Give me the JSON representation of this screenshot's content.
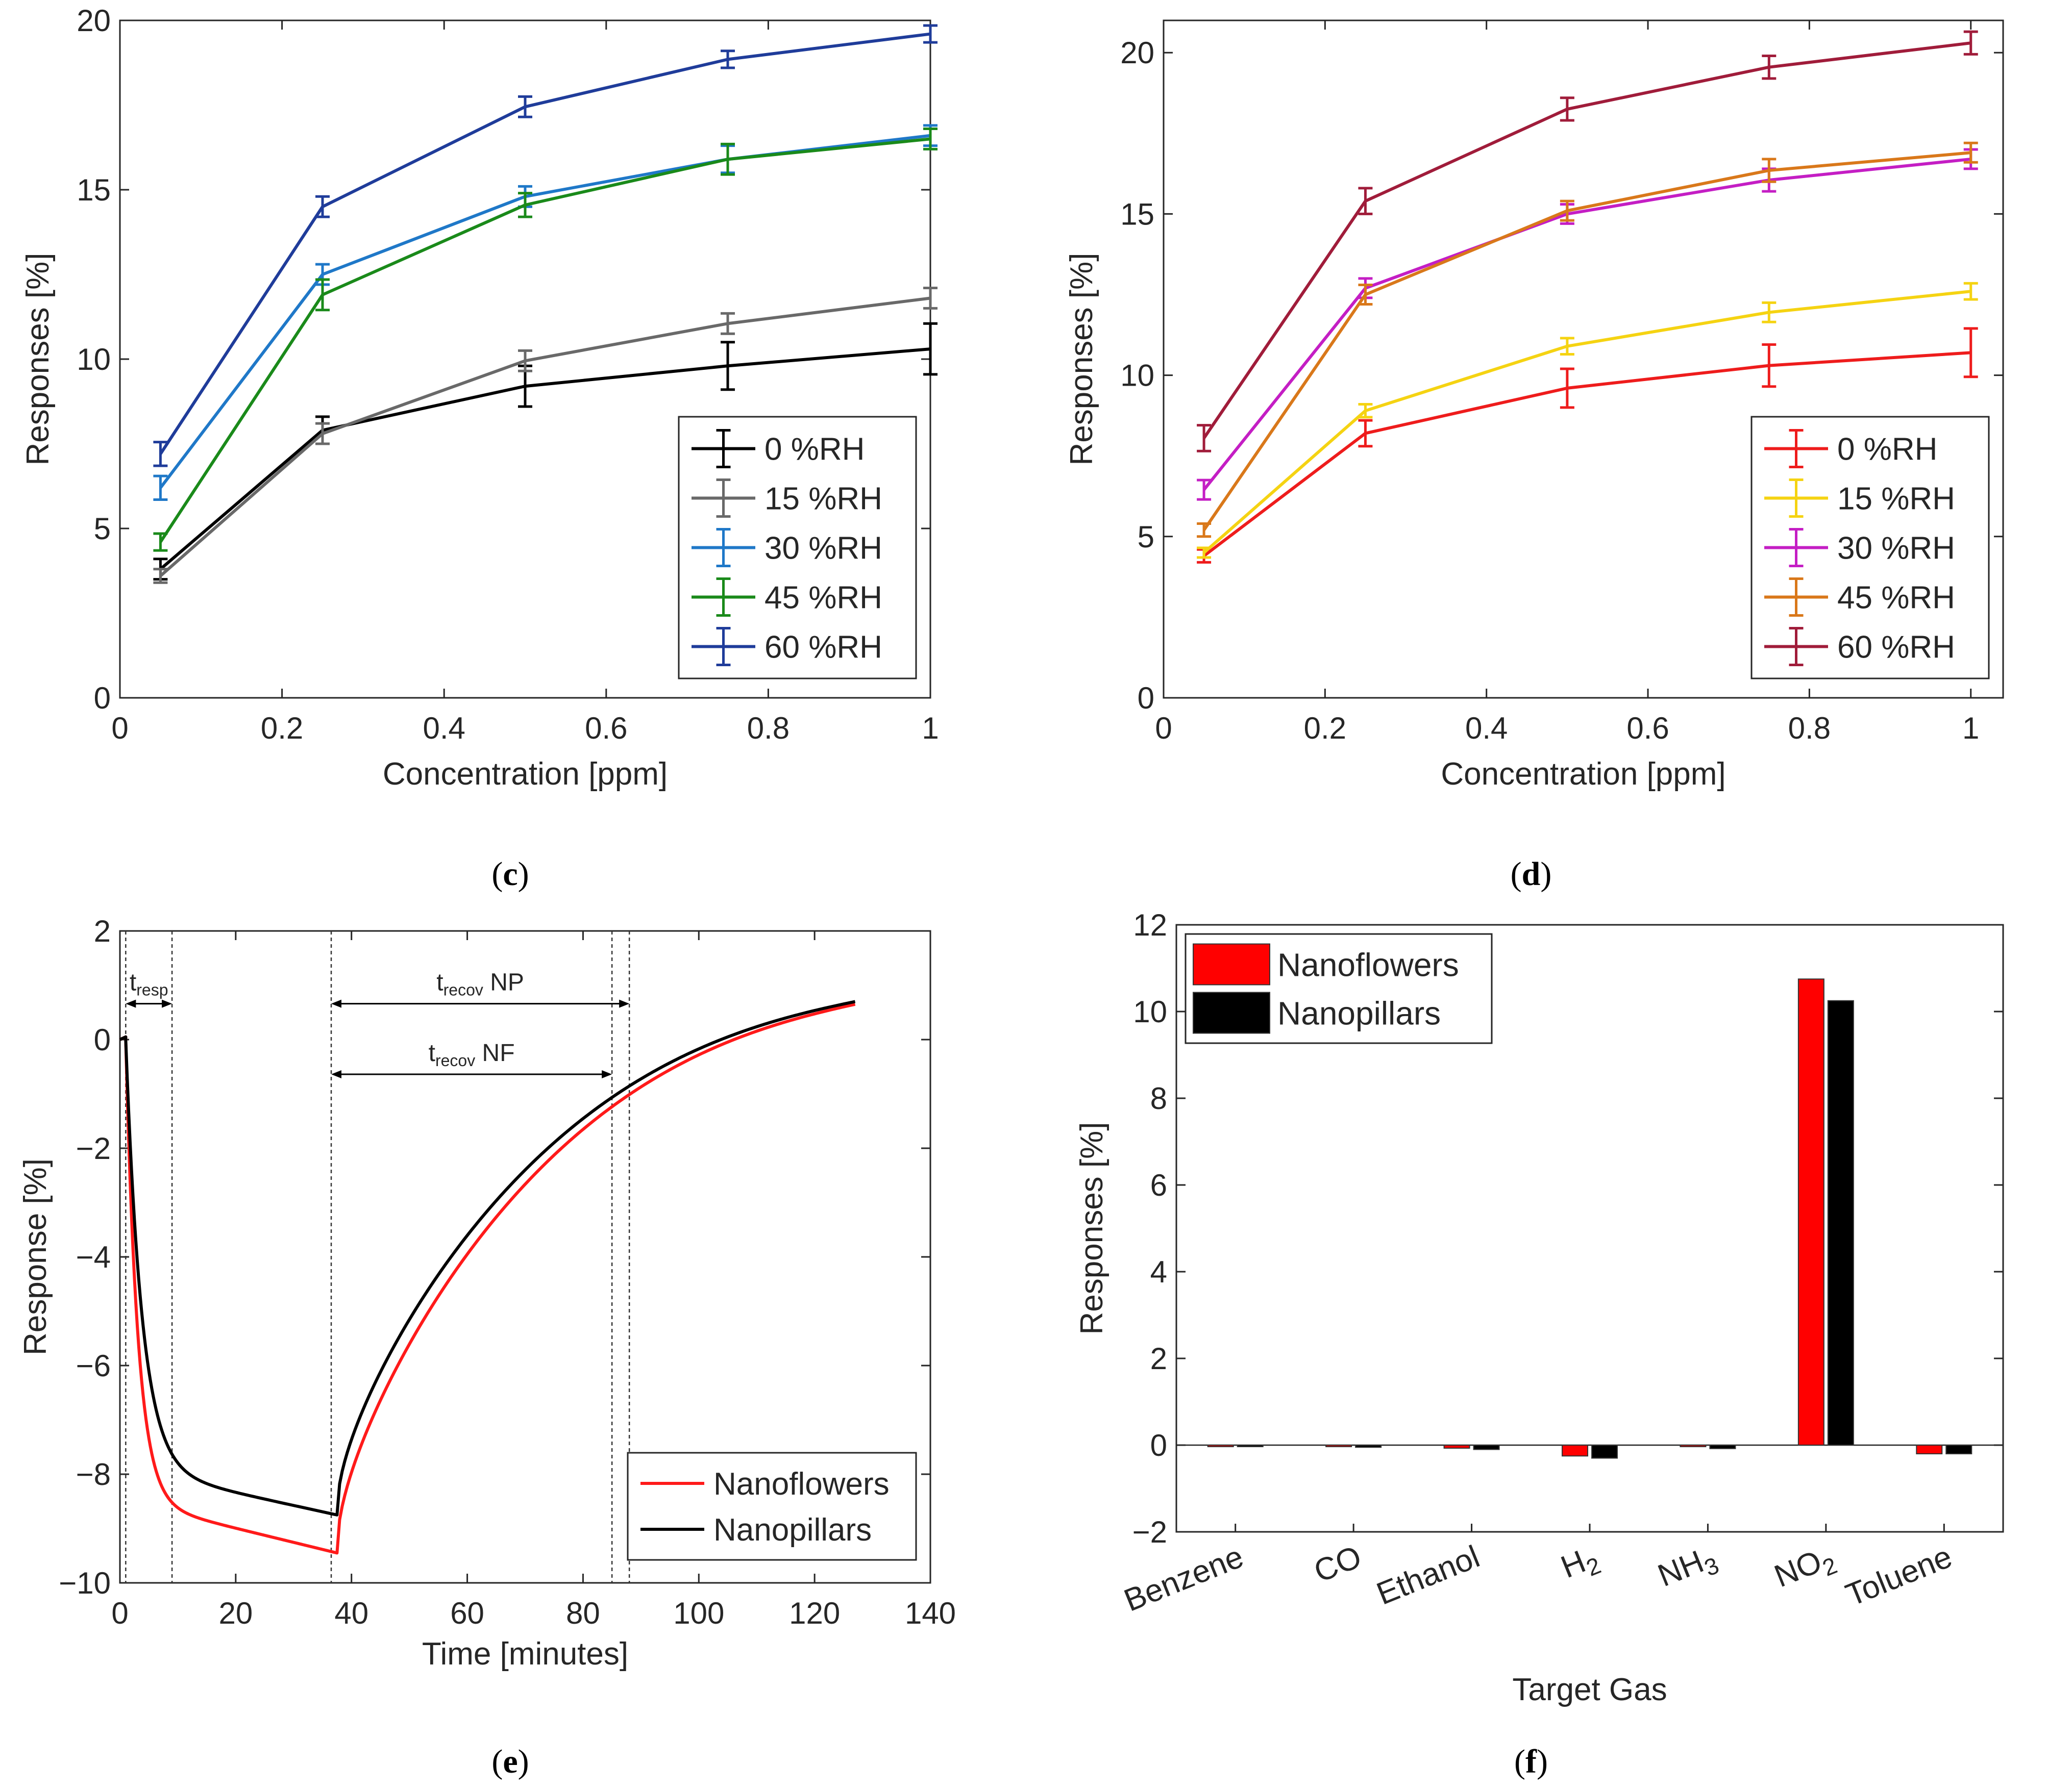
{
  "chart_data": [
    {
      "id": "c",
      "type": "line",
      "panel_label": "c",
      "xlabel": "Concentration [ppm]",
      "ylabel": "Responses [%]",
      "xlim": [
        0,
        1
      ],
      "ylim": [
        0,
        20
      ],
      "xticks": [
        0,
        0.2,
        0.4,
        0.6,
        0.8,
        1
      ],
      "xtick_labels": [
        "0",
        "0.2",
        "0.4",
        "0.6",
        "0.8",
        "1"
      ],
      "yticks": [
        0,
        5,
        10,
        15,
        20
      ],
      "ytick_labels": [
        "0",
        "5",
        "10",
        "15",
        "20"
      ],
      "legend_position": "bottom-right",
      "x": [
        0.05,
        0.25,
        0.5,
        0.75,
        1
      ],
      "series": [
        {
          "name": "0 %RH",
          "color": "#000000",
          "values": [
            3.8,
            7.9,
            9.2,
            9.8,
            10.3
          ],
          "errors": [
            0.3,
            0.4,
            0.6,
            0.7,
            0.75
          ]
        },
        {
          "name": "15 %RH",
          "color": "#696969",
          "values": [
            3.6,
            7.8,
            9.95,
            11.05,
            11.8
          ],
          "errors": [
            0.2,
            0.3,
            0.3,
            0.3,
            0.3
          ]
        },
        {
          "name": "30 %RH",
          "color": "#1f78c8",
          "values": [
            6.2,
            12.5,
            14.8,
            15.9,
            16.6
          ],
          "errors": [
            0.35,
            0.3,
            0.3,
            0.4,
            0.3
          ]
        },
        {
          "name": "45 %RH",
          "color": "#1a8a1a",
          "values": [
            4.6,
            11.9,
            14.55,
            15.9,
            16.5
          ],
          "errors": [
            0.25,
            0.45,
            0.35,
            0.45,
            0.3
          ]
        },
        {
          "name": "60 %RH",
          "color": "#1f3c9a",
          "values": [
            7.2,
            14.5,
            17.45,
            18.85,
            19.6
          ],
          "errors": [
            0.35,
            0.3,
            0.3,
            0.25,
            0.25
          ]
        }
      ]
    },
    {
      "id": "d",
      "type": "line",
      "panel_label": "d",
      "xlabel": "Concentration [ppm]",
      "ylabel": "Responses [%]",
      "xlim": [
        0,
        1.04
      ],
      "ylim": [
        0,
        21
      ],
      "xticks": [
        0,
        0.2,
        0.4,
        0.6,
        0.8,
        1
      ],
      "xtick_labels": [
        "0",
        "0.2",
        "0.4",
        "0.6",
        "0.8",
        "1"
      ],
      "yticks": [
        0,
        5,
        10,
        15,
        20
      ],
      "ytick_labels": [
        "0",
        "5",
        "10",
        "15",
        "20"
      ],
      "legend_position": "bottom-right",
      "x": [
        0.05,
        0.25,
        0.5,
        0.75,
        1
      ],
      "series": [
        {
          "name": "0 %RH",
          "color": "#ee1c1c",
          "values": [
            4.4,
            8.2,
            9.6,
            10.3,
            10.7
          ],
          "errors": [
            0.2,
            0.4,
            0.6,
            0.65,
            0.75
          ]
        },
        {
          "name": "15 %RH",
          "color": "#f5d312",
          "values": [
            4.5,
            8.9,
            10.9,
            11.95,
            12.6
          ],
          "errors": [
            0.15,
            0.2,
            0.25,
            0.3,
            0.25
          ]
        },
        {
          "name": "30 %RH",
          "color": "#c41ec4",
          "values": [
            6.45,
            12.7,
            15.0,
            16.05,
            16.7
          ],
          "errors": [
            0.3,
            0.3,
            0.3,
            0.35,
            0.3
          ]
        },
        {
          "name": "45 %RH",
          "color": "#d9781a",
          "values": [
            5.2,
            12.5,
            15.1,
            16.35,
            16.9
          ],
          "errors": [
            0.2,
            0.3,
            0.3,
            0.35,
            0.3
          ]
        },
        {
          "name": "60 %RH",
          "color": "#a01c3a",
          "values": [
            8.05,
            15.4,
            18.25,
            19.55,
            20.3
          ],
          "errors": [
            0.4,
            0.4,
            0.35,
            0.35,
            0.35
          ]
        }
      ]
    },
    {
      "id": "e",
      "type": "line",
      "panel_label": "e",
      "xlabel": "Time [minutes]",
      "ylabel": "Response [%]",
      "xlim": [
        0,
        140
      ],
      "ylim": [
        -10,
        2
      ],
      "xticks": [
        0,
        20,
        40,
        60,
        80,
        100,
        120,
        140
      ],
      "xtick_labels": [
        "0",
        "20",
        "40",
        "60",
        "80",
        "100",
        "120",
        "140"
      ],
      "yticks": [
        -10,
        -8,
        -6,
        -4,
        -2,
        0,
        2
      ],
      "ytick_labels": [
        "−10",
        "−8",
        "−6",
        "−4",
        "−2",
        "0",
        "2"
      ],
      "legend_position": "bottom-right",
      "series": [
        {
          "name": "Nanoflowers",
          "color": "#ff1a1a",
          "final": -9.45,
          "asymptote": -8.5,
          "tau": 2.1,
          "drift": 0.045,
          "end_value": 0.65
        },
        {
          "name": "Nanopillars",
          "color": "#000000",
          "final": -8.75,
          "asymptote": -7.9,
          "tau": 2.8,
          "drift": 0.03,
          "end_value": 0.7
        }
      ],
      "exposure": {
        "start": 1,
        "end": 37.5,
        "stop": 127
      },
      "annotations": [
        {
          "text": "t",
          "sub": "resp",
          "suffix": "",
          "x1": 1,
          "x2": 9,
          "y": 1.6
        },
        {
          "text": "t",
          "sub": "recov",
          "suffix": " NP",
          "x1": 36.5,
          "x2": 88,
          "y": 1.6
        },
        {
          "text": "t",
          "sub": "recov",
          "suffix": " NF",
          "x1": 36.5,
          "x2": 85,
          "y": 0.3
        }
      ],
      "vlines": [
        1,
        9,
        36.5,
        85,
        88
      ]
    },
    {
      "id": "f",
      "type": "bar",
      "panel_label": "f",
      "xlabel": "Target Gas",
      "ylabel": "Responses [%]",
      "ylim": [
        -2,
        12
      ],
      "yticks": [
        -2,
        0,
        2,
        4,
        6,
        8,
        10,
        12
      ],
      "ytick_labels": [
        "−2",
        "0",
        "2",
        "4",
        "6",
        "8",
        "10",
        "12"
      ],
      "legend_position": "top-left",
      "categories": [
        "Benzene",
        "CO",
        "Ethanol",
        "H",
        "NH",
        "NO",
        "Toluene"
      ],
      "category_subscripts": [
        "",
        "",
        "",
        "2",
        "3",
        "2",
        ""
      ],
      "series": [
        {
          "name": "Nanoflowers",
          "color": "#ff0000",
          "values": [
            -0.03,
            -0.03,
            -0.07,
            -0.25,
            -0.03,
            10.75,
            -0.2
          ]
        },
        {
          "name": "Nanopillars",
          "color": "#000000",
          "values": [
            -0.03,
            -0.05,
            -0.1,
            -0.3,
            -0.08,
            10.25,
            -0.2
          ]
        }
      ]
    }
  ]
}
